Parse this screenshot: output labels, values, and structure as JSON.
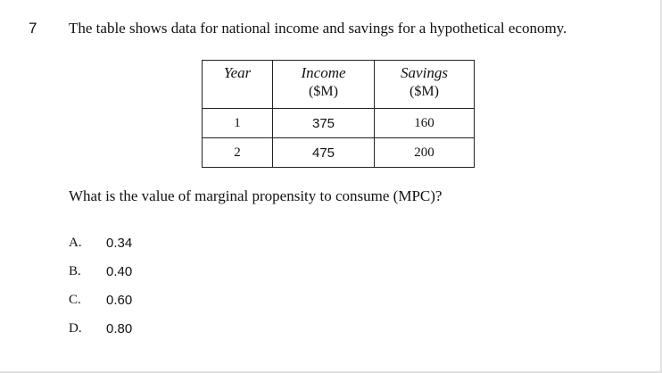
{
  "question": {
    "number": "7",
    "stem": "The table shows data for national income and savings for a hypothetical economy.",
    "prompt": "What is the value of marginal propensity to consume (MPC)?"
  },
  "table": {
    "headers": [
      {
        "name": "Year",
        "unit": ""
      },
      {
        "name": "Income",
        "unit": "($M)"
      },
      {
        "name": "Savings",
        "unit": "($M)"
      }
    ],
    "rows": [
      {
        "year": "1",
        "income": "375",
        "savings": "160"
      },
      {
        "year": "2",
        "income": "475",
        "savings": "200"
      }
    ]
  },
  "options": [
    {
      "letter": "A.",
      "value": "0.34"
    },
    {
      "letter": "B.",
      "value": "0.40"
    },
    {
      "letter": "C.",
      "value": "0.60"
    },
    {
      "letter": "D.",
      "value": "0.80"
    }
  ]
}
